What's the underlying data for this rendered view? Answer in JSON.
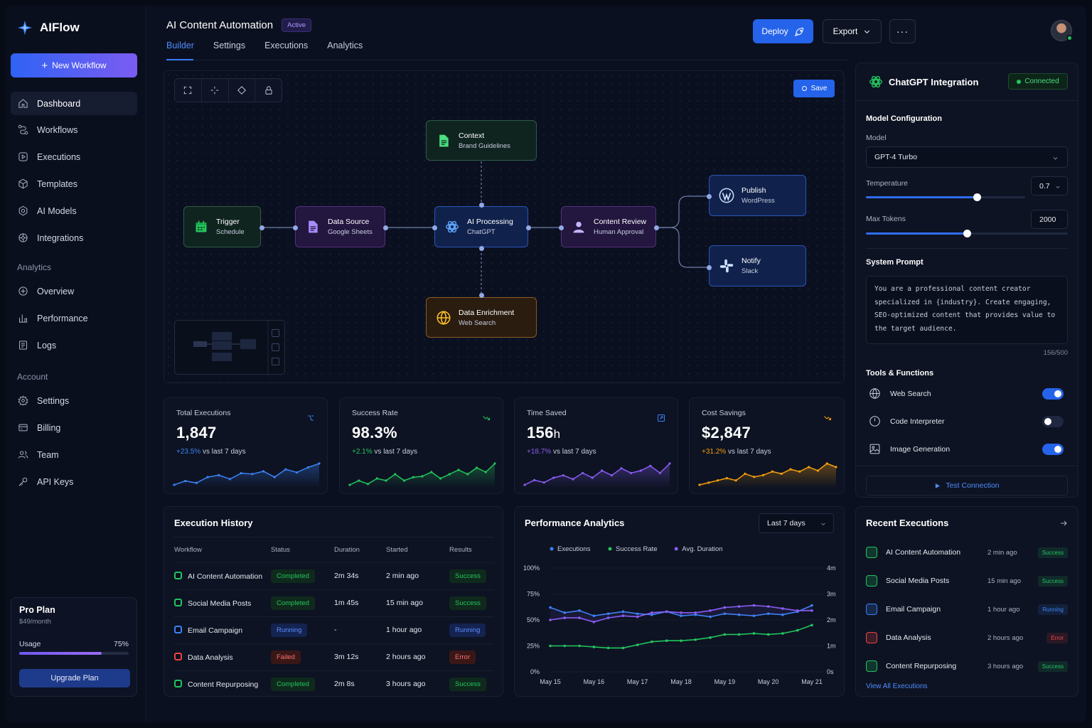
{
  "app": {
    "name": "AIFlow",
    "new_workflow": "New Workflow"
  },
  "sidebar": {
    "main": [
      {
        "label": "Dashboard",
        "icon": "home-icon"
      },
      {
        "label": "Workflows",
        "icon": "workflow-icon"
      },
      {
        "label": "Executions",
        "icon": "executions-icon"
      },
      {
        "label": "Templates",
        "icon": "templates-icon"
      },
      {
        "label": "AI Models",
        "icon": "ai-models-icon"
      },
      {
        "label": "Integrations",
        "icon": "integrations-icon"
      }
    ],
    "analytics_title": "Analytics",
    "analytics": [
      {
        "label": "Overview",
        "icon": "overview-icon"
      },
      {
        "label": "Performance",
        "icon": "performance-icon"
      },
      {
        "label": "Logs",
        "icon": "logs-icon"
      }
    ],
    "account_title": "Account",
    "account": [
      {
        "label": "Settings",
        "icon": "settings-icon"
      },
      {
        "label": "Billing",
        "icon": "billing-icon"
      },
      {
        "label": "Team",
        "icon": "team-icon"
      },
      {
        "label": "API Keys",
        "icon": "key-icon"
      }
    ],
    "plan": {
      "name": "Pro Plan",
      "price": "$49/month",
      "usage_label": "Usage",
      "usage_pct": "75%",
      "usage_value": 0.75,
      "upgrade": "Upgrade Plan"
    }
  },
  "header": {
    "title": "AI Content Automation",
    "status": "Active",
    "tabs": [
      "Builder",
      "Settings",
      "Executions",
      "Analytics"
    ],
    "deploy": "Deploy",
    "export": "Export"
  },
  "canvas": {
    "save": "Save",
    "nodes": [
      {
        "id": "trigger",
        "title": "Trigger",
        "subtitle": "Schedule"
      },
      {
        "id": "datasource",
        "title": "Data Source",
        "subtitle": "Google Sheets"
      },
      {
        "id": "ai",
        "title": "AI Processing",
        "subtitle": "ChatGPT"
      },
      {
        "id": "review",
        "title": "Content Review",
        "subtitle": "Human Approval"
      },
      {
        "id": "publish",
        "title": "Publish",
        "subtitle": "WordPress"
      },
      {
        "id": "notify",
        "title": "Notify",
        "subtitle": "Slack"
      },
      {
        "id": "context",
        "title": "Context",
        "subtitle": "Brand Guidelines"
      },
      {
        "id": "enrich",
        "title": "Data Enrichment",
        "subtitle": "Web Search"
      }
    ]
  },
  "kpis": [
    {
      "label": "Total Executions",
      "value": "1,847",
      "unit": "",
      "change": "+23.5%",
      "suffix": "vs last 7 days",
      "color": "#3b82f6",
      "spark": [
        3,
        4,
        3.5,
        5,
        5.5,
        4.5,
        6,
        5.8,
        6.5,
        5,
        7,
        6.2,
        7.5,
        8.5
      ]
    },
    {
      "label": "Success Rate",
      "value": "98.3%",
      "unit": "",
      "change": "+2.1%",
      "suffix": "vs last 7 days",
      "color": "#22c55e",
      "spark": [
        3,
        4,
        3.2,
        4.5,
        4,
        5.5,
        4,
        4.8,
        5,
        6,
        4.5,
        5.5,
        6.5,
        5.5,
        7,
        6,
        8
      ]
    },
    {
      "label": "Time Saved",
      "value": "156",
      "unit": "h",
      "change": "+18.7%",
      "suffix": "vs last 7 days",
      "color": "#8b5cf6",
      "spark": [
        3,
        4,
        3.5,
        4.5,
        5,
        4.2,
        5.5,
        4.5,
        6,
        5,
        6.5,
        5.5,
        6,
        7,
        5.5,
        7.5
      ]
    },
    {
      "label": "Cost Savings",
      "value": "$2,847",
      "unit": "",
      "change": "+31.2%",
      "suffix": "vs last 7 days",
      "color": "#f59e0b",
      "spark": [
        3,
        3.5,
        4,
        4.5,
        4,
        5.5,
        4.8,
        5.2,
        6,
        5.5,
        6.5,
        6,
        7,
        6.2,
        7.8,
        7
      ]
    }
  ],
  "chatgpt": {
    "title": "ChatGPT Integration",
    "status": "Connected",
    "model_config": "Model Configuration",
    "model_label": "Model",
    "model_value": "GPT-4 Turbo",
    "temperature_label": "Temperature",
    "temperature_value": "0.7",
    "temperature_level": 0.7,
    "max_tokens_label": "Max Tokens",
    "max_tokens_value": "2000",
    "max_tokens_level": 0.5,
    "system_prompt_label": "System Prompt",
    "system_prompt": "You are a professional content creator specialized in {industry}. Create engaging, SEO-optimized content that provides value to the target audience.",
    "char_count": "156/500",
    "tools_label": "Tools & Functions",
    "tools": [
      {
        "label": "Web Search",
        "on": true,
        "icon": "globe-icon"
      },
      {
        "label": "Code Interpreter",
        "on": false,
        "icon": "code-icon"
      },
      {
        "label": "Image Generation",
        "on": true,
        "icon": "image-icon"
      }
    ],
    "test": "Test Connection"
  },
  "history": {
    "title": "Execution History",
    "columns": [
      "Workflow",
      "Status",
      "Duration",
      "Started",
      "Results"
    ],
    "rows": [
      {
        "workflow": "AI Content Automation",
        "status": "Completed",
        "duration": "2m 34s",
        "started": "2 min ago",
        "result": "Success",
        "icon_color": "#22c55e"
      },
      {
        "workflow": "Social Media Posts",
        "status": "Completed",
        "duration": "1m 45s",
        "started": "15 min ago",
        "result": "Success",
        "icon_color": "#22c55e"
      },
      {
        "workflow": "Email Campaign",
        "status": "Running",
        "duration": "-",
        "started": "1 hour ago",
        "result": "Running",
        "icon_color": "#3b82f6"
      },
      {
        "workflow": "Data Analysis",
        "status": "Failed",
        "duration": "3m 12s",
        "started": "2 hours ago",
        "result": "Error",
        "icon_color": "#ef4444"
      },
      {
        "workflow": "Content Repurposing",
        "status": "Completed",
        "duration": "2m 8s",
        "started": "3 hours ago",
        "result": "Success",
        "icon_color": "#22c55e"
      }
    ]
  },
  "chart_data": {
    "type": "line",
    "title": "Performance Analytics",
    "range_select": "Last 7 days",
    "categories": [
      "May 15",
      "May 16",
      "May 17",
      "May 18",
      "May 19",
      "May 20",
      "May 21"
    ],
    "yticks_left": [
      "100%",
      "75%",
      "50%",
      "25%",
      "0%"
    ],
    "yticks_right": [
      "4m",
      "3m",
      "2m",
      "1m",
      "0s"
    ],
    "ylim": [
      0,
      100
    ],
    "legend": [
      "Executions",
      "Success Rate",
      "Avg. Duration"
    ],
    "series": [
      {
        "name": "Executions",
        "color": "#3b82f6",
        "x": [
          0,
          0.33,
          0.67,
          1,
          1.33,
          1.67,
          2,
          2.33,
          2.67,
          3,
          3.33,
          3.67,
          4,
          4.33,
          4.67,
          5,
          5.33,
          5.67,
          6
        ],
        "values": [
          62,
          57,
          59,
          54,
          56,
          58,
          56,
          55,
          58,
          54,
          55,
          53,
          56,
          55,
          54,
          56,
          55,
          58,
          64
        ]
      },
      {
        "name": "Success Rate",
        "color": "#22c55e",
        "x": [
          0,
          0.33,
          0.67,
          1,
          1.33,
          1.67,
          2,
          2.33,
          2.67,
          3,
          3.33,
          3.67,
          4,
          4.33,
          4.67,
          5,
          5.33,
          5.67,
          6
        ],
        "values": [
          25,
          25,
          25,
          24,
          23,
          23,
          26,
          29,
          30,
          30,
          31,
          33,
          36,
          36,
          37,
          36,
          37,
          40,
          45
        ]
      },
      {
        "name": "Avg. Duration",
        "color": "#8b5cf6",
        "x": [
          0,
          0.33,
          0.67,
          1,
          1.33,
          1.67,
          2,
          2.33,
          2.67,
          3,
          3.33,
          3.67,
          4,
          4.33,
          4.67,
          5,
          5.33,
          5.67,
          6
        ],
        "values": [
          50,
          52,
          52,
          48,
          52,
          54,
          53,
          57,
          58,
          57,
          57,
          59,
          62,
          63,
          64,
          63,
          61,
          59,
          59
        ]
      }
    ]
  },
  "recent": {
    "title": "Recent Executions",
    "rows": [
      {
        "name": "AI Content Automation",
        "time": "2 min ago",
        "status": "Success",
        "color": "#22c55e"
      },
      {
        "name": "Social Media Posts",
        "time": "15 min ago",
        "status": "Success",
        "color": "#22c55e"
      },
      {
        "name": "Email Campaign",
        "time": "1 hour ago",
        "status": "Running",
        "color": "#3b82f6"
      },
      {
        "name": "Data Analysis",
        "time": "2 hours ago",
        "status": "Error",
        "color": "#ef4444"
      },
      {
        "name": "Content Repurposing",
        "time": "3 hours ago",
        "status": "Success",
        "color": "#22c55e"
      }
    ],
    "view_all": "View All Executions"
  }
}
